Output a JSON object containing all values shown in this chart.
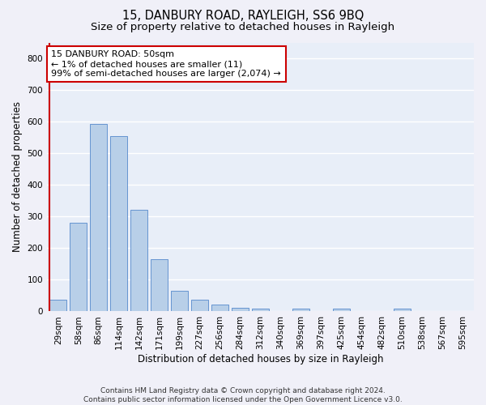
{
  "title1": "15, DANBURY ROAD, RAYLEIGH, SS6 9BQ",
  "title2": "Size of property relative to detached houses in Rayleigh",
  "xlabel": "Distribution of detached houses by size in Rayleigh",
  "ylabel": "Number of detached properties",
  "categories": [
    "29sqm",
    "58sqm",
    "86sqm",
    "114sqm",
    "142sqm",
    "171sqm",
    "199sqm",
    "227sqm",
    "256sqm",
    "284sqm",
    "312sqm",
    "340sqm",
    "369sqm",
    "397sqm",
    "425sqm",
    "454sqm",
    "482sqm",
    "510sqm",
    "538sqm",
    "567sqm",
    "595sqm"
  ],
  "values": [
    38,
    280,
    593,
    553,
    320,
    165,
    65,
    37,
    22,
    12,
    8,
    0,
    10,
    0,
    8,
    0,
    0,
    10,
    0,
    0,
    0
  ],
  "bar_color": "#b8cfe8",
  "bar_edge_color": "#5588cc",
  "background_color": "#e8eef8",
  "grid_color": "#ffffff",
  "annotation_text": "15 DANBURY ROAD: 50sqm\n← 1% of detached houses are smaller (11)\n99% of semi-detached houses are larger (2,074) →",
  "annotation_box_color": "#ffffff",
  "annotation_box_edge_color": "#cc0000",
  "marker_color": "#cc0000",
  "ylim": [
    0,
    850
  ],
  "yticks": [
    0,
    100,
    200,
    300,
    400,
    500,
    600,
    700,
    800
  ],
  "footer": "Contains HM Land Registry data © Crown copyright and database right 2024.\nContains public sector information licensed under the Open Government Licence v3.0.",
  "title1_fontsize": 10.5,
  "title2_fontsize": 9.5,
  "axis_label_fontsize": 8.5,
  "tick_fontsize": 7.5,
  "annotation_fontsize": 8,
  "footer_fontsize": 6.5
}
